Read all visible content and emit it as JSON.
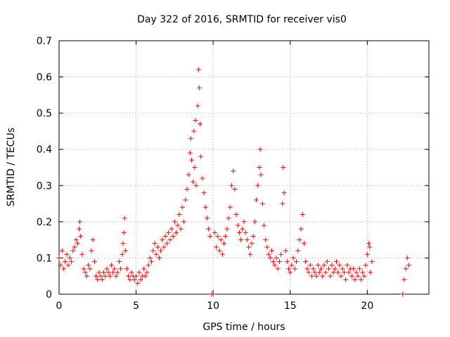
{
  "chart_data": {
    "type": "scatter",
    "title": "Day 322 of 2016, SRMTID for receiver vis0",
    "xlabel": "GPS time / hours",
    "ylabel": "SRMTID / TECUs",
    "xlim": [
      0,
      24
    ],
    "ylim": [
      0,
      0.7
    ],
    "xticks": [
      0,
      5,
      10,
      15,
      20
    ],
    "xtick_labels": [
      "0",
      "5",
      "10",
      "15",
      "20"
    ],
    "yticks": [
      0,
      0.1,
      0.2,
      0.3,
      0.4,
      0.5,
      0.6,
      0.7
    ],
    "ytick_labels": [
      "0",
      "0.1",
      "0.2",
      "0.3",
      "0.4",
      "0.5",
      "0.6",
      "0.7"
    ],
    "grid": true,
    "marker": "+",
    "marker_color": "#ff0000",
    "series": [
      {
        "name": "SRMTID",
        "points": [
          [
            0.0,
            0.1
          ],
          [
            0.1,
            0.08
          ],
          [
            0.2,
            0.12
          ],
          [
            0.3,
            0.07
          ],
          [
            0.4,
            0.09
          ],
          [
            0.5,
            0.11
          ],
          [
            0.6,
            0.08
          ],
          [
            0.7,
            0.1
          ],
          [
            0.8,
            0.09
          ],
          [
            0.9,
            0.12
          ],
          [
            1.0,
            0.13
          ],
          [
            1.1,
            0.15
          ],
          [
            1.2,
            0.14
          ],
          [
            1.3,
            0.18
          ],
          [
            1.35,
            0.2
          ],
          [
            1.4,
            0.16
          ],
          [
            1.5,
            0.11
          ],
          [
            1.6,
            0.07
          ],
          [
            1.7,
            0.06
          ],
          [
            1.8,
            0.05
          ],
          [
            1.9,
            0.08
          ],
          [
            2.0,
            0.07
          ],
          [
            2.1,
            0.12
          ],
          [
            2.2,
            0.15
          ],
          [
            2.3,
            0.09
          ],
          [
            2.4,
            0.05
          ],
          [
            2.5,
            0.04
          ],
          [
            2.6,
            0.06
          ],
          [
            2.7,
            0.05
          ],
          [
            2.8,
            0.04
          ],
          [
            2.9,
            0.06
          ],
          [
            3.0,
            0.05
          ],
          [
            3.1,
            0.07
          ],
          [
            3.2,
            0.06
          ],
          [
            3.3,
            0.05
          ],
          [
            3.4,
            0.08
          ],
          [
            3.5,
            0.06
          ],
          [
            3.6,
            0.07
          ],
          [
            3.7,
            0.05
          ],
          [
            3.8,
            0.06
          ],
          [
            3.9,
            0.09
          ],
          [
            4.0,
            0.07
          ],
          [
            4.1,
            0.11
          ],
          [
            4.15,
            0.14
          ],
          [
            4.2,
            0.17
          ],
          [
            4.25,
            0.21
          ],
          [
            4.3,
            0.12
          ],
          [
            4.4,
            0.07
          ],
          [
            4.5,
            0.05
          ],
          [
            4.6,
            0.04
          ],
          [
            4.7,
            0.06
          ],
          [
            4.8,
            0.05
          ],
          [
            4.9,
            0.04
          ],
          [
            5.0,
            0.05
          ],
          [
            5.1,
            0.03
          ],
          [
            5.2,
            0.06
          ],
          [
            5.3,
            0.04
          ],
          [
            5.4,
            0.05
          ],
          [
            5.5,
            0.07
          ],
          [
            5.6,
            0.05
          ],
          [
            5.7,
            0.06
          ],
          [
            5.8,
            0.08
          ],
          [
            5.9,
            0.1
          ],
          [
            6.0,
            0.09
          ],
          [
            6.1,
            0.12
          ],
          [
            6.2,
            0.14
          ],
          [
            6.3,
            0.11
          ],
          [
            6.4,
            0.13
          ],
          [
            6.5,
            0.1
          ],
          [
            6.6,
            0.12
          ],
          [
            6.7,
            0.15
          ],
          [
            6.8,
            0.13
          ],
          [
            6.9,
            0.16
          ],
          [
            7.0,
            0.14
          ],
          [
            7.1,
            0.17
          ],
          [
            7.2,
            0.15
          ],
          [
            7.3,
            0.18
          ],
          [
            7.4,
            0.16
          ],
          [
            7.5,
            0.2
          ],
          [
            7.6,
            0.17
          ],
          [
            7.7,
            0.19
          ],
          [
            7.8,
            0.22
          ],
          [
            7.9,
            0.18
          ],
          [
            8.0,
            0.24
          ],
          [
            8.1,
            0.2
          ],
          [
            8.2,
            0.26
          ],
          [
            8.3,
            0.29
          ],
          [
            8.4,
            0.33
          ],
          [
            8.5,
            0.39
          ],
          [
            8.55,
            0.43
          ],
          [
            8.6,
            0.37
          ],
          [
            8.7,
            0.31
          ],
          [
            8.75,
            0.45
          ],
          [
            8.8,
            0.35
          ],
          [
            8.85,
            0.48
          ],
          [
            8.9,
            0.3
          ],
          [
            9.0,
            0.52
          ],
          [
            9.05,
            0.62
          ],
          [
            9.1,
            0.57
          ],
          [
            9.15,
            0.47
          ],
          [
            9.2,
            0.38
          ],
          [
            9.3,
            0.32
          ],
          [
            9.4,
            0.28
          ],
          [
            9.5,
            0.24
          ],
          [
            9.6,
            0.21
          ],
          [
            9.7,
            0.18
          ],
          [
            9.8,
            0.16
          ],
          [
            9.9,
            0.0
          ],
          [
            10.0,
            0.0
          ],
          [
            10.1,
            0.17
          ],
          [
            10.2,
            0.13
          ],
          [
            10.3,
            0.16
          ],
          [
            10.4,
            0.12
          ],
          [
            10.5,
            0.15
          ],
          [
            10.6,
            0.11
          ],
          [
            10.7,
            0.14
          ],
          [
            10.8,
            0.16
          ],
          [
            10.9,
            0.18
          ],
          [
            11.0,
            0.21
          ],
          [
            11.1,
            0.24
          ],
          [
            11.2,
            0.3
          ],
          [
            11.3,
            0.34
          ],
          [
            11.4,
            0.29
          ],
          [
            11.5,
            0.22
          ],
          [
            11.6,
            0.19
          ],
          [
            11.7,
            0.17
          ],
          [
            11.8,
            0.15
          ],
          [
            11.9,
            0.18
          ],
          [
            12.0,
            0.2
          ],
          [
            12.1,
            0.17
          ],
          [
            12.2,
            0.15
          ],
          [
            12.3,
            0.13
          ],
          [
            12.4,
            0.11
          ],
          [
            12.5,
            0.14
          ],
          [
            12.6,
            0.16
          ],
          [
            12.7,
            0.2
          ],
          [
            12.8,
            0.26
          ],
          [
            12.9,
            0.3
          ],
          [
            13.0,
            0.35
          ],
          [
            13.05,
            0.4
          ],
          [
            13.1,
            0.33
          ],
          [
            13.2,
            0.25
          ],
          [
            13.3,
            0.19
          ],
          [
            13.4,
            0.15
          ],
          [
            13.5,
            0.13
          ],
          [
            13.6,
            0.11
          ],
          [
            13.7,
            0.1
          ],
          [
            13.8,
            0.12
          ],
          [
            13.9,
            0.09
          ],
          [
            14.0,
            0.08
          ],
          [
            14.1,
            0.1
          ],
          [
            14.2,
            0.07
          ],
          [
            14.3,
            0.09
          ],
          [
            14.4,
            0.11
          ],
          [
            14.5,
            0.25
          ],
          [
            14.55,
            0.35
          ],
          [
            14.6,
            0.28
          ],
          [
            14.7,
            0.12
          ],
          [
            14.8,
            0.09
          ],
          [
            14.9,
            0.07
          ],
          [
            15.0,
            0.06
          ],
          [
            15.1,
            0.08
          ],
          [
            15.2,
            0.1
          ],
          [
            15.3,
            0.07
          ],
          [
            15.4,
            0.09
          ],
          [
            15.5,
            0.12
          ],
          [
            15.6,
            0.15
          ],
          [
            15.7,
            0.18
          ],
          [
            15.8,
            0.22
          ],
          [
            15.9,
            0.14
          ],
          [
            16.0,
            0.09
          ],
          [
            16.1,
            0.07
          ],
          [
            16.2,
            0.06
          ],
          [
            16.3,
            0.08
          ],
          [
            16.4,
            0.05
          ],
          [
            16.5,
            0.07
          ],
          [
            16.6,
            0.06
          ],
          [
            16.7,
            0.05
          ],
          [
            16.8,
            0.08
          ],
          [
            16.9,
            0.06
          ],
          [
            17.0,
            0.07
          ],
          [
            17.1,
            0.05
          ],
          [
            17.2,
            0.08
          ],
          [
            17.3,
            0.06
          ],
          [
            17.4,
            0.09
          ],
          [
            17.5,
            0.07
          ],
          [
            17.6,
            0.05
          ],
          [
            17.7,
            0.08
          ],
          [
            17.8,
            0.06
          ],
          [
            17.9,
            0.07
          ],
          [
            18.0,
            0.09
          ],
          [
            18.1,
            0.06
          ],
          [
            18.2,
            0.08
          ],
          [
            18.3,
            0.05
          ],
          [
            18.4,
            0.07
          ],
          [
            18.5,
            0.06
          ],
          [
            18.6,
            0.04
          ],
          [
            18.7,
            0.08
          ],
          [
            18.8,
            0.06
          ],
          [
            18.9,
            0.07
          ],
          [
            19.0,
            0.05
          ],
          [
            19.1,
            0.07
          ],
          [
            19.2,
            0.04
          ],
          [
            19.3,
            0.06
          ],
          [
            19.4,
            0.05
          ],
          [
            19.5,
            0.07
          ],
          [
            19.6,
            0.04
          ],
          [
            19.7,
            0.06
          ],
          [
            19.8,
            0.05
          ],
          [
            19.9,
            0.08
          ],
          [
            20.0,
            0.11
          ],
          [
            20.1,
            0.14
          ],
          [
            20.15,
            0.13
          ],
          [
            20.2,
            0.06
          ],
          [
            20.3,
            0.09
          ],
          [
            22.3,
            0.0
          ],
          [
            22.4,
            0.04
          ],
          [
            22.5,
            0.07
          ],
          [
            22.6,
            0.1
          ],
          [
            22.7,
            0.08
          ]
        ]
      }
    ]
  }
}
